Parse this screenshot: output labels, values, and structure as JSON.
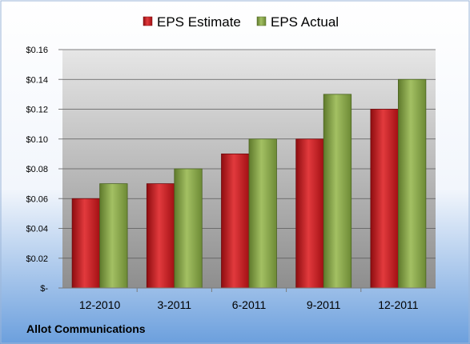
{
  "chart_data": {
    "type": "bar",
    "categories": [
      "12-2010",
      "3-2011",
      "6-2011",
      "9-2011",
      "12-2011"
    ],
    "series": [
      {
        "name": "EPS Estimate",
        "values": [
          0.06,
          0.07,
          0.09,
          0.1,
          0.12
        ],
        "color": "#c0161b"
      },
      {
        "name": "EPS Actual",
        "values": [
          0.07,
          0.08,
          0.1,
          0.13,
          0.14
        ],
        "color": "#8aa84a"
      }
    ],
    "ylim": [
      0,
      0.16
    ],
    "yticks": [
      0,
      0.02,
      0.04,
      0.06,
      0.08,
      0.1,
      0.12,
      0.14,
      0.16
    ],
    "ytick_labels": [
      "$-",
      "$0.02",
      "$0.04",
      "$0.06",
      "$0.08",
      "$0.10",
      "$0.12",
      "$0.14",
      "$0.16"
    ],
    "grid": true,
    "legend": "top-center",
    "annotation": "Allot Communications"
  },
  "colors": {
    "background_top": "#ffffff",
    "background_bottom": "#6b9fdd",
    "plot_top": "#e6e6e6",
    "plot_bottom": "#8e8e8e"
  }
}
